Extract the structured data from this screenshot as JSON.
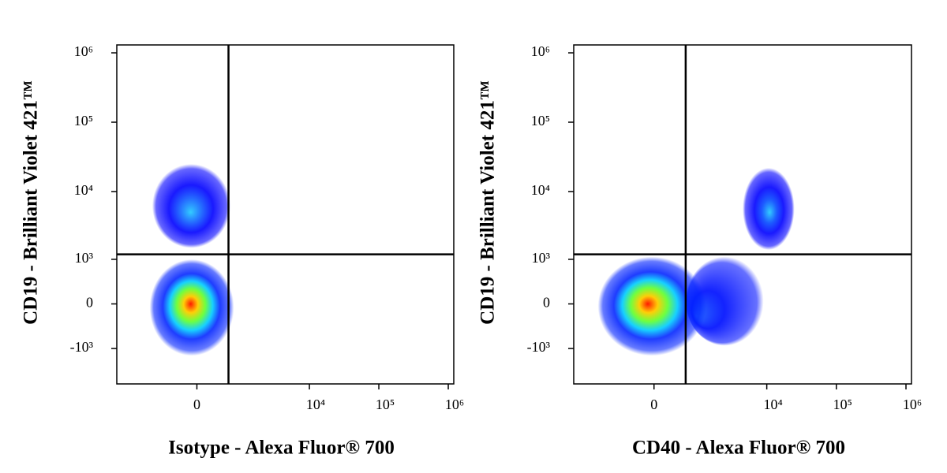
{
  "chart_data": [
    {
      "type": "density",
      "xlabel": "Isotype - Alexa Fluor® 700",
      "ylabel": "CD19 - Brilliant Violet 421™",
      "xscale": "asinh",
      "yscale": "asinh",
      "linear_width": 480,
      "xlim": [
        -3400,
        1200000
      ],
      "ylim": [
        -3400,
        1300000
      ],
      "xticks": [
        0,
        {
          "value": 10000,
          "label": "10⁴"
        },
        {
          "value": 100000,
          "label": "10⁵"
        },
        {
          "value": 1000000,
          "label": "10⁶"
        }
      ],
      "yticks": [
        {
          "value": -1000,
          "label": "-10³"
        },
        0,
        {
          "value": 1000,
          "label": "10³"
        },
        {
          "value": 10000,
          "label": "10⁴"
        },
        {
          "value": 100000,
          "label": "10⁵"
        },
        {
          "value": 1000000,
          "label": "10⁶"
        }
      ],
      "gates": {
        "x": 600,
        "y": 1200
      },
      "populations": [
        {
          "x": -100,
          "y": 5000,
          "x_range": [
            -1000,
            650
          ],
          "y_range": [
            1500,
            25000
          ],
          "colors": [
            "#33ccff",
            "#1a66ff",
            "#0000ff"
          ]
        },
        {
          "x": -100,
          "y": 0,
          "x_range": [
            -1100,
            750
          ],
          "y_range": [
            -1300,
            1000
          ],
          "colors": [
            "#ff1a00",
            "#ffcc00",
            "#66ff33",
            "#00ccff",
            "#0022ff"
          ]
        }
      ]
    },
    {
      "type": "density",
      "xlabel": "CD40 - Alexa Fluor® 700",
      "ylabel": "CD19 - Brilliant Violet 421™",
      "xscale": "asinh",
      "yscale": "asinh",
      "linear_width": 480,
      "xlim": [
        -3400,
        1200000
      ],
      "ylim": [
        -3400,
        1300000
      ],
      "xticks": [
        0,
        {
          "value": 10000,
          "label": "10⁴"
        },
        {
          "value": 100000,
          "label": "10⁵"
        },
        {
          "value": 1000000,
          "label": "10⁶"
        }
      ],
      "yticks": [
        {
          "value": -1000,
          "label": "-10³"
        },
        0,
        {
          "value": 1000,
          "label": "10³"
        },
        {
          "value": 10000,
          "label": "10⁴"
        },
        {
          "value": 100000,
          "label": "10⁵"
        },
        {
          "value": 1000000,
          "label": "10⁶"
        }
      ],
      "gates": {
        "x": 600,
        "y": 1200
      },
      "populations": [
        {
          "x": 900,
          "y": -200,
          "x_range": [
            600,
            9000
          ],
          "y_range": [
            -900,
            1100
          ],
          "colors": [
            "#2a6cff",
            "#0011ff"
          ]
        },
        {
          "x": 11000,
          "y": 5000,
          "x_range": [
            4500,
            25000
          ],
          "y_range": [
            1400,
            22000
          ],
          "colors": [
            "#33ccff",
            "#1155ff",
            "#0000ff"
          ]
        },
        {
          "x": -100,
          "y": 0,
          "x_range": [
            -1500,
            1300
          ],
          "y_range": [
            -1300,
            1100
          ],
          "colors": [
            "#ff1a00",
            "#ffcc00",
            "#66ff33",
            "#00ccff",
            "#0022ff"
          ]
        }
      ]
    }
  ]
}
